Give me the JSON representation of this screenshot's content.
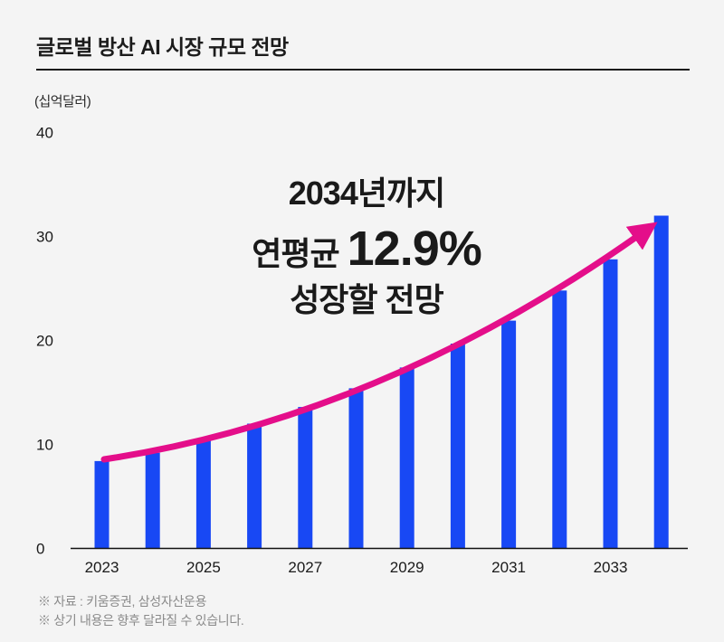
{
  "header": {
    "title": "글로벌 방산 AI 시장 규모 전망"
  },
  "chart_data": {
    "type": "bar",
    "title": "글로벌 방산 AI 시장 규모 전망",
    "unit_label": "(십억달러)",
    "xlabel": "",
    "ylabel": "(십억달러)",
    "categories": [
      "2023",
      "2024",
      "2025",
      "2026",
      "2027",
      "2028",
      "2029",
      "2030",
      "2031",
      "2032",
      "2033",
      "2034"
    ],
    "values": [
      8.4,
      9.2,
      10.6,
      12.0,
      13.6,
      15.4,
      17.4,
      19.7,
      21.9,
      24.8,
      27.8,
      32.0
    ],
    "x_tick_labels": [
      "2023",
      "2025",
      "2027",
      "2029",
      "2031",
      "2033"
    ],
    "y_ticks": [
      0,
      10,
      20,
      30,
      40
    ],
    "ylim": [
      0,
      40
    ],
    "grid": false,
    "legend": "none",
    "bar_color": "#1848f4",
    "trend_color": "#e40e8a",
    "axis_color": "#111111",
    "text_color": "#1a1a1a",
    "annotation_text": "2034년까지 연평균 12.9% 성장할 전망"
  },
  "annotation": {
    "line1": "2034년까지",
    "line2_prefix": "연평균 ",
    "line2_value": "12.9%",
    "line3": "성장할 전망"
  },
  "footer": {
    "source": "※ 자료 : 키움증권, 삼성자산운용",
    "disclaimer": "※ 상기 내용은 향후 달라질 수 있습니다."
  },
  "colors": {
    "background": "#f4f4f4",
    "bar": "#1848f4",
    "accent": "#e40e8a",
    "text": "#1a1a1a",
    "muted": "#8a8a8a"
  }
}
